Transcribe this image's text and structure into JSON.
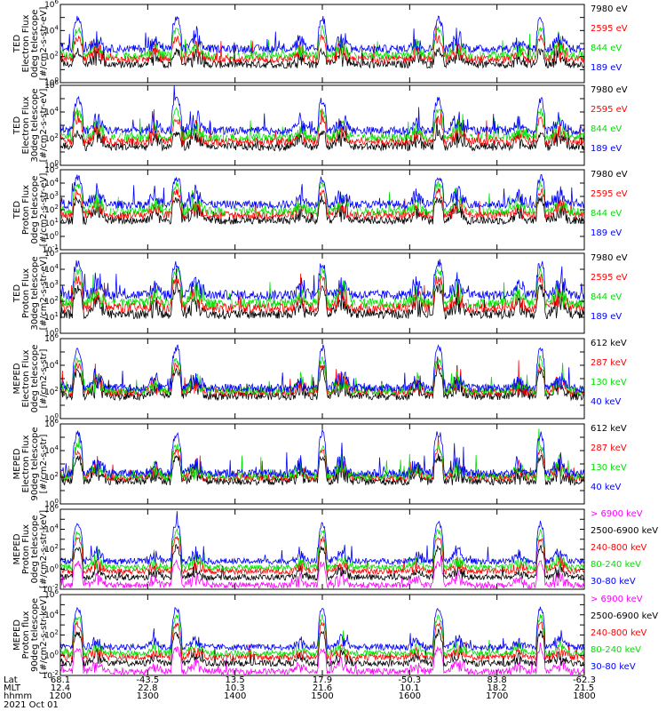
{
  "chart_data": [
    {
      "type": "line",
      "ylabel": [
        "TED",
        "Electron Flux",
        "0deg telescope",
        "[#/cm2-s-str-eV]"
      ],
      "ylog": [
        0,
        6
      ],
      "series": [
        {
          "name": "7980 eV",
          "color": "#000000"
        },
        {
          "name": "2595 eV",
          "color": "#ff0000"
        },
        {
          "name": "844 eV",
          "color": "#00e000"
        },
        {
          "name": "189 eV",
          "color": "#0000ff"
        }
      ]
    },
    {
      "type": "line",
      "ylabel": [
        "TED",
        "Electron Flux",
        "30deg telescope",
        "[#/cm2-s-str-eV]"
      ],
      "ylog": [
        0,
        6
      ],
      "series": [
        {
          "name": "7980 eV",
          "color": "#000000"
        },
        {
          "name": "2595 eV",
          "color": "#ff0000"
        },
        {
          "name": "844 eV",
          "color": "#00e000"
        },
        {
          "name": "189 eV",
          "color": "#0000ff"
        }
      ]
    },
    {
      "type": "line",
      "ylabel": [
        "TED",
        "Proton Flux",
        "0deg telescope",
        "[#/cm2-s-str-eV]"
      ],
      "ylog": [
        -1,
        5
      ],
      "series": [
        {
          "name": "7980 eV",
          "color": "#000000"
        },
        {
          "name": "2595 eV",
          "color": "#ff0000"
        },
        {
          "name": "844 eV",
          "color": "#00e000"
        },
        {
          "name": "189 eV",
          "color": "#0000ff"
        }
      ]
    },
    {
      "type": "line",
      "ylabel": [
        "TED",
        "Proton Flux",
        "30deg telescope",
        "[#/cm2-s-str-eV]"
      ],
      "ylog": [
        0,
        5
      ],
      "series": [
        {
          "name": "7980 eV",
          "color": "#000000"
        },
        {
          "name": "2595 eV",
          "color": "#ff0000"
        },
        {
          "name": "844 eV",
          "color": "#00e000"
        },
        {
          "name": "189 eV",
          "color": "#0000ff"
        }
      ]
    },
    {
      "type": "line",
      "ylabel": [
        "MEPED",
        "Electron Flux",
        "0deg telescope",
        "[#/cm2-s-str]"
      ],
      "ylog": [
        0,
        6
      ],
      "series": [
        {
          "name": "612 keV",
          "color": "#000000"
        },
        {
          "name": "287 keV",
          "color": "#ff0000"
        },
        {
          "name": "130 keV",
          "color": "#00e000"
        },
        {
          "name": "40 keV",
          "color": "#0000ff"
        }
      ]
    },
    {
      "type": "line",
      "ylabel": [
        "MEPED",
        "Electron Flux",
        "90deg telescope",
        "[#/cm2-s-str]"
      ],
      "ylog": [
        0,
        6
      ],
      "series": [
        {
          "name": "612 keV",
          "color": "#000000"
        },
        {
          "name": "287 keV",
          "color": "#ff0000"
        },
        {
          "name": "130 keV",
          "color": "#00e000"
        },
        {
          "name": "40 keV",
          "color": "#0000ff"
        }
      ]
    },
    {
      "type": "line",
      "ylabel": [
        "MEPED",
        "Proton Flux",
        "0deg telescope",
        "[#/cm2-s-str-keV]"
      ],
      "ylog": [
        -2,
        6
      ],
      "series": [
        {
          "name": "> 6900 keV",
          "color": "#ff00ff"
        },
        {
          "name": "2500-6900 keV",
          "color": "#000000"
        },
        {
          "name": "240-800 keV",
          "color": "#ff0000"
        },
        {
          "name": "80-240 keV",
          "color": "#00e000"
        },
        {
          "name": "30-80 keV",
          "color": "#0000ff"
        }
      ]
    },
    {
      "type": "line",
      "ylabel": [
        "MEPED",
        "Proton flux",
        "90deg telescope",
        "[#/cm2-s-str-keV]"
      ],
      "ylog": [
        -2,
        6
      ],
      "series": [
        {
          "name": "> 6900 keV",
          "color": "#ff00ff"
        },
        {
          "name": "2500-6900 keV",
          "color": "#000000"
        },
        {
          "name": "240-800 keV",
          "color": "#ff0000"
        },
        {
          "name": "80-240 keV",
          "color": "#00e000"
        },
        {
          "name": "30-80 keV",
          "color": "#0000ff"
        }
      ]
    }
  ],
  "xaxis": {
    "row_labels": [
      "Lat",
      "MLT",
      "hhmm",
      "2021 Oct 01"
    ],
    "xlim": [
      1200,
      1800
    ],
    "ticks": [
      {
        "time": 1200,
        "lat": "68.1",
        "mlt": "12.4",
        "hhmm": "1200"
      },
      {
        "time": 1300,
        "lat": "-43.5",
        "mlt": "22.8",
        "hhmm": "1300"
      },
      {
        "time": 1400,
        "lat": "13.5",
        "mlt": "10.3",
        "hhmm": "1400"
      },
      {
        "time": 1500,
        "lat": "17.9",
        "mlt": "21.6",
        "hhmm": "1500"
      },
      {
        "time": 1600,
        "lat": "-50.3",
        "mlt": "10.1",
        "hhmm": "1600"
      },
      {
        "time": 1700,
        "lat": "83.8",
        "mlt": "18.2",
        "hhmm": "1700"
      },
      {
        "time": 1800,
        "lat": "-62.3",
        "mlt": "21.5",
        "hhmm": "1800"
      }
    ]
  },
  "passes": [
    {
      "center": 1220,
      "width": 6
    },
    {
      "center": 1333,
      "width": 6
    },
    {
      "center": 1500,
      "width": 5
    },
    {
      "center": 1633,
      "width": 6
    },
    {
      "center": 1750,
      "width": 5
    }
  ]
}
